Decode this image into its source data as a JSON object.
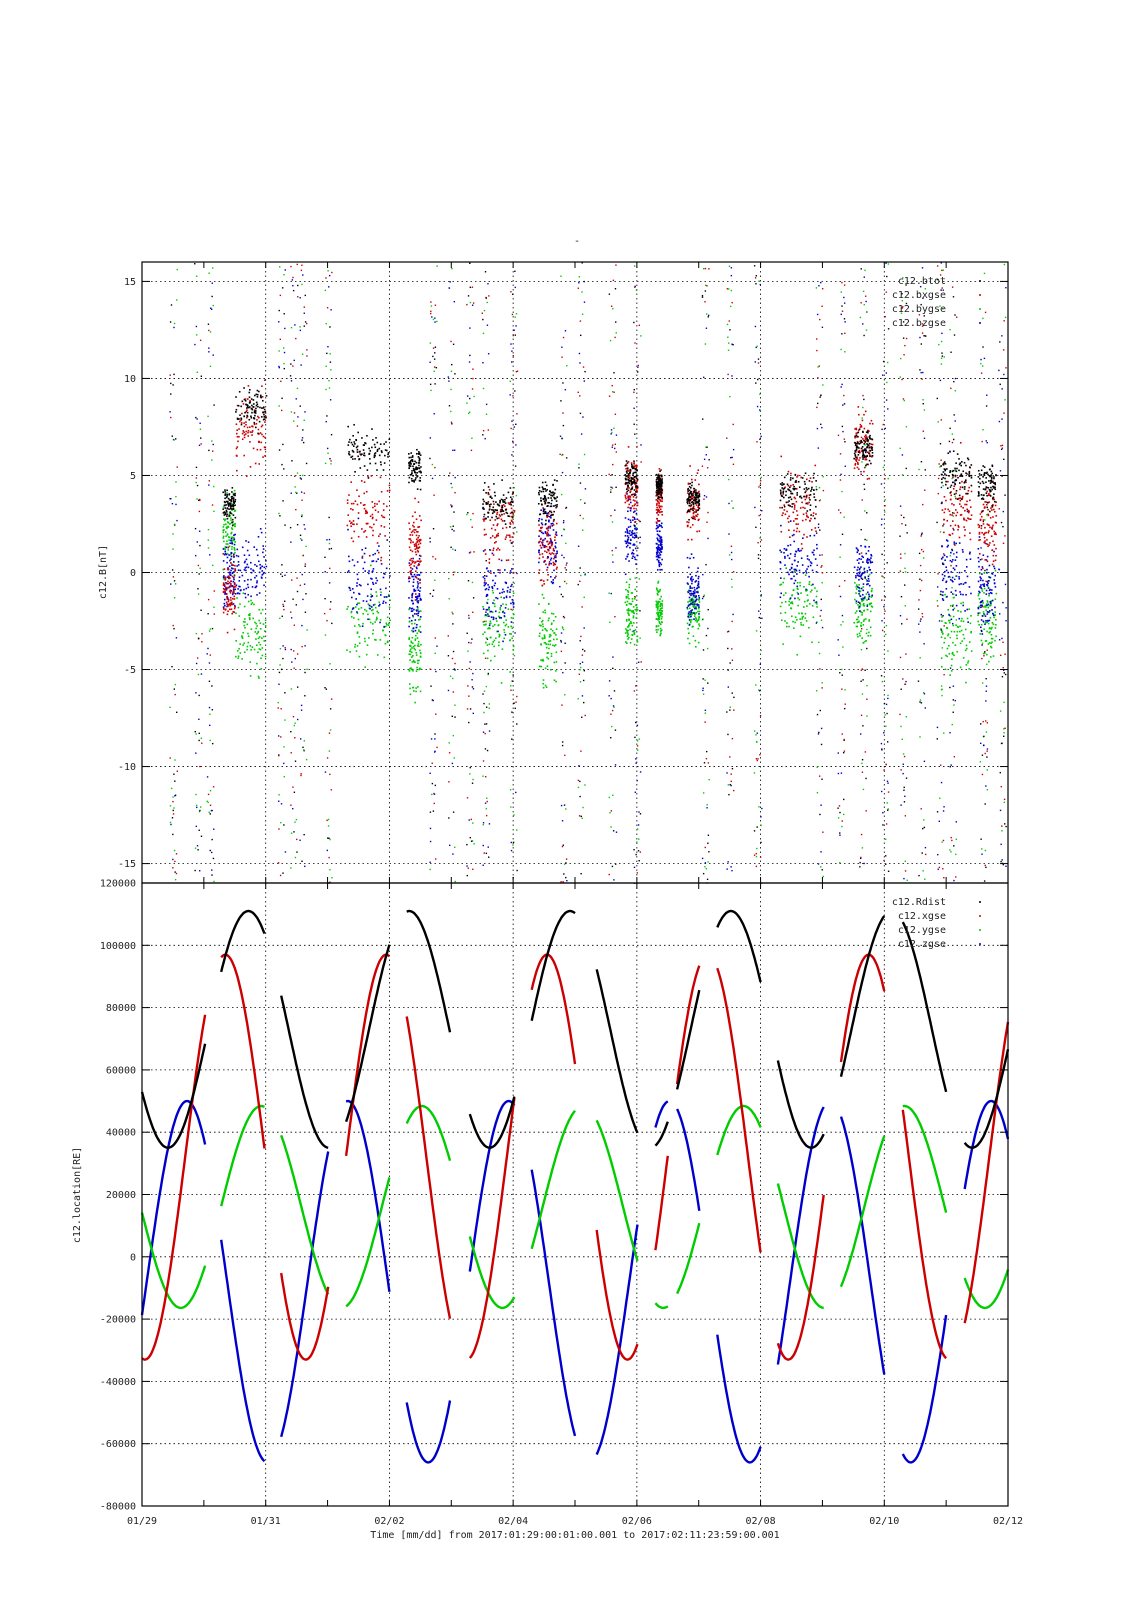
{
  "figure": {
    "title": "-",
    "xlabel": "Time [mm/dd]  from 2017:01:29:00:01:00.001  to  2017:02:11:23:59:00.001"
  },
  "x_tick_labels": [
    "01/29",
    "01/31",
    "02/02",
    "02/04",
    "02/06",
    "02/08",
    "02/10",
    "02/12"
  ],
  "chart_data": [
    {
      "type": "scatter",
      "panel": "magnetic-field",
      "ylabel": "c12.B[nT]",
      "ylim": [
        -16,
        16
      ],
      "xlim": [
        0,
        14
      ],
      "x_units": "days since 01/29",
      "y_ticks": [
        -15,
        -10,
        -5,
        0,
        5,
        10,
        15
      ],
      "grid": true,
      "legend_placement": "top-right",
      "series": [
        {
          "name": "c12.btot",
          "color": "#000000"
        },
        {
          "name": "c12.bxgse",
          "color": "#cc0000"
        },
        {
          "name": "c12.bygse",
          "color": "#00cc00"
        },
        {
          "name": "c12.bzgse",
          "color": "#0000cc"
        }
      ],
      "clusters": [
        {
          "x0": 1.3,
          "x1": 1.5,
          "btot": 3.5,
          "bx": -1,
          "by": 2,
          "bz": 0,
          "spread": 1.6
        },
        {
          "x0": 1.5,
          "x1": 2.0,
          "btot": 8.5,
          "bx": 7.5,
          "by": -3,
          "bz": 0,
          "spread": 1.8
        },
        {
          "x0": 3.3,
          "x1": 4.0,
          "btot": 6.2,
          "bx": 3.0,
          "by": -2.5,
          "bz": -0.5,
          "spread": 2.0
        },
        {
          "x0": 4.3,
          "x1": 4.5,
          "btot": 5.5,
          "bx": 1.5,
          "by": -4,
          "bz": -1,
          "spread": 2.0
        },
        {
          "x0": 5.5,
          "x1": 6.0,
          "btot": 3.5,
          "bx": 2.5,
          "by": -3,
          "bz": -1,
          "spread": 1.8
        },
        {
          "x0": 6.4,
          "x1": 6.7,
          "btot": 3.8,
          "bx": 1.5,
          "by": -3.5,
          "bz": 1.5,
          "spread": 2.0
        },
        {
          "x0": 7.8,
          "x1": 8.0,
          "btot": 5.0,
          "bx": 4.5,
          "by": -2,
          "bz": 2,
          "spread": 1.6
        },
        {
          "x0": 8.3,
          "x1": 8.4,
          "btot": 4.5,
          "bx": 4.0,
          "by": -2,
          "bz": 1.5,
          "spread": 1.2
        },
        {
          "x0": 8.8,
          "x1": 9.0,
          "btot": 3.8,
          "bx": 3.5,
          "by": -2,
          "bz": -1,
          "spread": 1.4
        },
        {
          "x0": 10.3,
          "x1": 10.9,
          "btot": 4.2,
          "bx": 3.5,
          "by": -1.5,
          "bz": 0.5,
          "spread": 1.8
        },
        {
          "x0": 11.5,
          "x1": 11.8,
          "btot": 6.5,
          "bx": 6.5,
          "by": -2,
          "bz": 0,
          "spread": 1.6
        },
        {
          "x0": 12.9,
          "x1": 13.4,
          "btot": 5.0,
          "bx": 3.5,
          "by": -3,
          "bz": 0,
          "spread": 2.0
        },
        {
          "x0": 13.5,
          "x1": 13.8,
          "btot": 4.5,
          "bx": 2.5,
          "by": -2,
          "bz": -1,
          "spread": 2.2
        }
      ],
      "vertical_streaks": [
        0.5,
        0.9,
        1.1,
        2.25,
        2.45,
        2.6,
        3.0,
        4.7,
        5.0,
        5.3,
        5.55,
        6.0,
        6.8,
        7.1,
        7.6,
        8.0,
        9.1,
        9.5,
        9.95,
        10.95,
        11.3,
        11.65,
        12.0,
        12.3,
        12.6,
        12.9,
        13.1,
        13.6,
        13.9
      ],
      "time_gaps": [
        1.25,
        2.2,
        4.2,
        6.3,
        8.3,
        10.2,
        12.2
      ]
    },
    {
      "type": "line",
      "panel": "location",
      "ylabel": "c12.location[RE]",
      "ylim": [
        -80000,
        120000
      ],
      "xlim": [
        0,
        14
      ],
      "x_units": "days since 01/29",
      "y_ticks": [
        -80000,
        -60000,
        -40000,
        -20000,
        0,
        20000,
        40000,
        60000,
        80000,
        100000,
        120000
      ],
      "grid": true,
      "legend_placement": "top-right",
      "series": [
        {
          "name": "c12.Rdist",
          "color": "#000000"
        },
        {
          "name": "c12.xgse",
          "color": "#cc0000"
        },
        {
          "name": "c12.ygse",
          "color": "#00cc00"
        },
        {
          "name": "c12.zgse",
          "color": "#0000cc"
        }
      ],
      "orbit_period_days": 2.6,
      "orbit_phase_days": 0.42,
      "segments": [
        {
          "x0": 0.0,
          "x1": 1.02
        },
        {
          "x0": 1.28,
          "x1": 1.98
        },
        {
          "x0": 2.25,
          "x1": 3.02
        },
        {
          "x0": 3.3,
          "x1": 4.0
        },
        {
          "x0": 4.28,
          "x1": 4.98
        },
        {
          "x0": 5.3,
          "x1": 6.02
        },
        {
          "x0": 6.3,
          "x1": 7.0
        },
        {
          "x0": 7.35,
          "x1": 8.02
        },
        {
          "x0": 8.3,
          "x1": 8.5
        },
        {
          "x0": 8.65,
          "x1": 9.02
        },
        {
          "x0": 9.3,
          "x1": 10.0
        },
        {
          "x0": 10.28,
          "x1": 11.02
        },
        {
          "x0": 11.3,
          "x1": 12.0
        },
        {
          "x0": 12.3,
          "x1": 13.0
        },
        {
          "x0": 13.3,
          "x1": 14.0
        }
      ]
    }
  ]
}
